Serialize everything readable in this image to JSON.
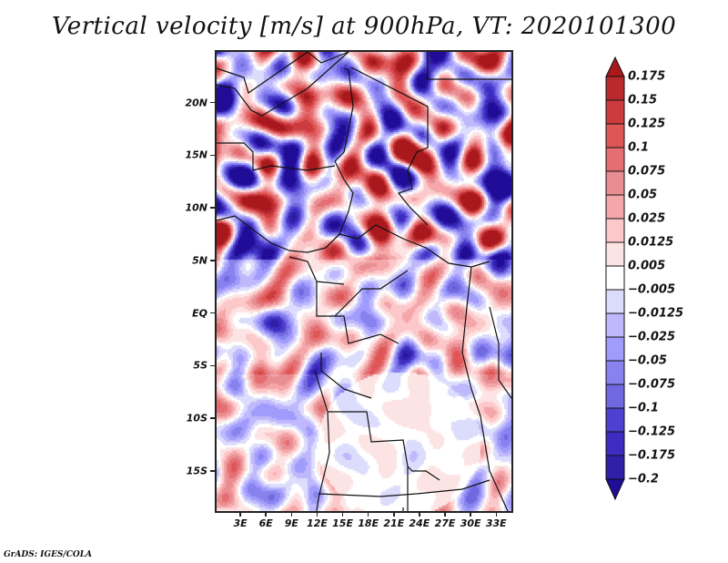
{
  "title": "Vertical velocity [m/s] at 900hPa, VT: 2020101300",
  "credit": "GrADS: IGES/COLA",
  "map": {
    "variable": "Vertical velocity",
    "units": "m/s",
    "level": "900hPa",
    "valid_time": "2020101300",
    "lon_range": [
      0,
      35
    ],
    "lat_range": [
      -19,
      25
    ],
    "y_ticks": [
      {
        "label": "20N",
        "lat": 20
      },
      {
        "label": "15N",
        "lat": 15
      },
      {
        "label": "10N",
        "lat": 10
      },
      {
        "label": "5N",
        "lat": 5
      },
      {
        "label": "EQ",
        "lat": 0
      },
      {
        "label": "5S",
        "lat": -5
      },
      {
        "label": "10S",
        "lat": -10
      },
      {
        "label": "15S",
        "lat": -15
      }
    ],
    "x_ticks": [
      {
        "label": "3E",
        "lon": 3
      },
      {
        "label": "6E",
        "lon": 6
      },
      {
        "label": "9E",
        "lon": 9
      },
      {
        "label": "12E",
        "lon": 12
      },
      {
        "label": "15E",
        "lon": 15
      },
      {
        "label": "18E",
        "lon": 18
      },
      {
        "label": "21E",
        "lon": 21
      },
      {
        "label": "24E",
        "lon": 24
      },
      {
        "label": "27E",
        "lon": 27
      },
      {
        "label": "30E",
        "lon": 30
      },
      {
        "label": "33E",
        "lon": 33
      }
    ]
  },
  "colorbar": {
    "labels": [
      "0.175",
      "0.15",
      "0.125",
      "0.1",
      "0.075",
      "0.05",
      "0.025",
      "0.0125",
      "0.005",
      "-0.005",
      "-0.0125",
      "-0.025",
      "-0.05",
      "-0.075",
      "-0.1",
      "-0.125",
      "-0.175",
      "-0.2"
    ],
    "colors": [
      "#a8181c",
      "#b82a2d",
      "#cc3c3e",
      "#e05656",
      "#e46e72",
      "#e88e92",
      "#f4a6a8",
      "#fcc8ca",
      "#fde4e4",
      "#ffffff",
      "#dcdcfc",
      "#c0b8fc",
      "#a09cfc",
      "#8882ee",
      "#7068de",
      "#4e40d0",
      "#3e2cc0",
      "#3020a8",
      "#200c96"
    ],
    "top_arrow_color": "#a8181c",
    "bottom_arrow_color": "#200c96"
  }
}
